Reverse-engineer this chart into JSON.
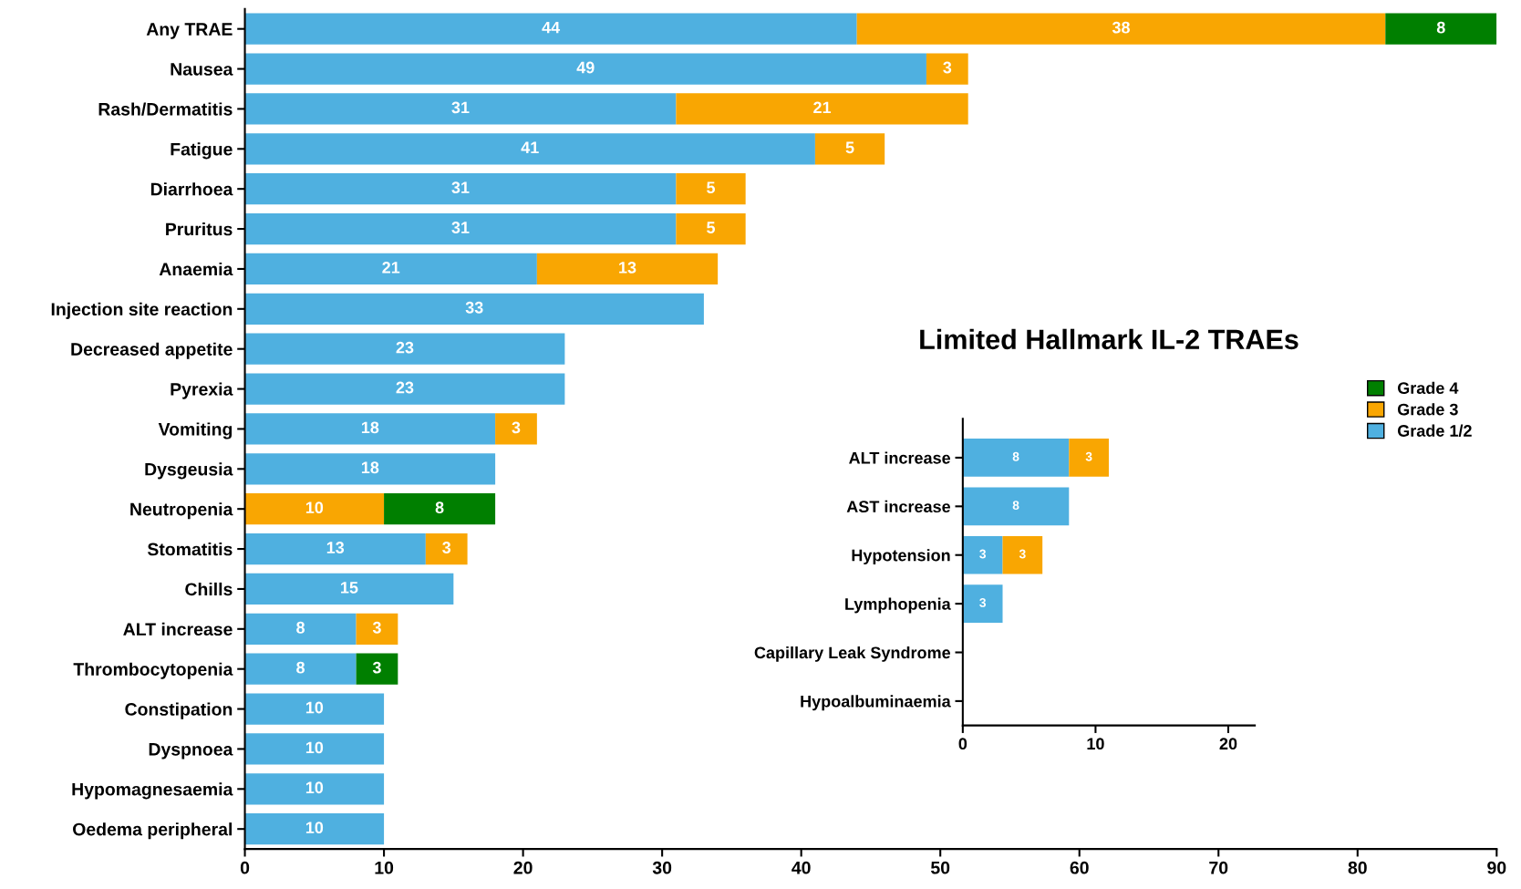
{
  "chart_data": [
    {
      "type": "bar",
      "orientation": "horizontal",
      "stacked": true,
      "data_labels": true,
      "grid": false,
      "legend": "right",
      "categories": [
        "Any TRAE",
        "Nausea",
        "Rash/Dermatitis",
        "Fatigue",
        "Diarrhoea",
        "Pruritus",
        "Anaemia",
        "Injection site reaction",
        "Decreased appetite",
        "Pyrexia",
        "Vomiting",
        "Dysgeusia",
        "Neutropenia",
        "Stomatitis",
        "Chills",
        "ALT increase",
        "Thrombocytopenia",
        "Constipation",
        "Dyspnoea",
        "Hypomagnesaemia",
        "Oedema peripheral"
      ],
      "series": [
        {
          "name": "Grade 1/2",
          "color": "#4fb0e0",
          "values": [
            44,
            49,
            31,
            41,
            31,
            31,
            21,
            33,
            23,
            23,
            18,
            18,
            null,
            13,
            15,
            8,
            8,
            10,
            10,
            10,
            10
          ]
        },
        {
          "name": "Grade 3",
          "color": "#f9a602",
          "values": [
            38,
            3,
            21,
            5,
            5,
            5,
            13,
            null,
            null,
            null,
            3,
            null,
            10,
            3,
            null,
            3,
            null,
            null,
            null,
            null,
            null
          ]
        },
        {
          "name": "Grade 4",
          "color": "#007f00",
          "values": [
            8,
            null,
            null,
            null,
            null,
            null,
            null,
            null,
            null,
            null,
            null,
            null,
            8,
            null,
            null,
            null,
            3,
            null,
            null,
            null,
            null
          ]
        }
      ],
      "xlim": [
        0,
        90
      ],
      "xticks": [
        0,
        10,
        20,
        30,
        40,
        50,
        60,
        70,
        80,
        90
      ]
    },
    {
      "type": "bar",
      "orientation": "horizontal",
      "stacked": true,
      "data_labels": true,
      "grid": false,
      "title": "Limited Hallmark IL-2 TRAEs",
      "categories": [
        "ALT increase",
        "AST increase",
        "Hypotension",
        "Lymphopenia",
        "Capillary Leak Syndrome",
        "Hypoalbuminaemia"
      ],
      "series": [
        {
          "color": "#4fb0e0",
          "values": [
            8,
            8,
            3,
            3,
            null,
            null
          ]
        },
        {
          "color": "#f9a602",
          "values": [
            3,
            null,
            3,
            null,
            null,
            null
          ]
        },
        {
          "color": "#007f00",
          "values": [
            null,
            null,
            null,
            null,
            null,
            null
          ]
        }
      ],
      "xlim": [
        0,
        22
      ],
      "xticks": [
        0,
        10,
        20
      ]
    }
  ]
}
